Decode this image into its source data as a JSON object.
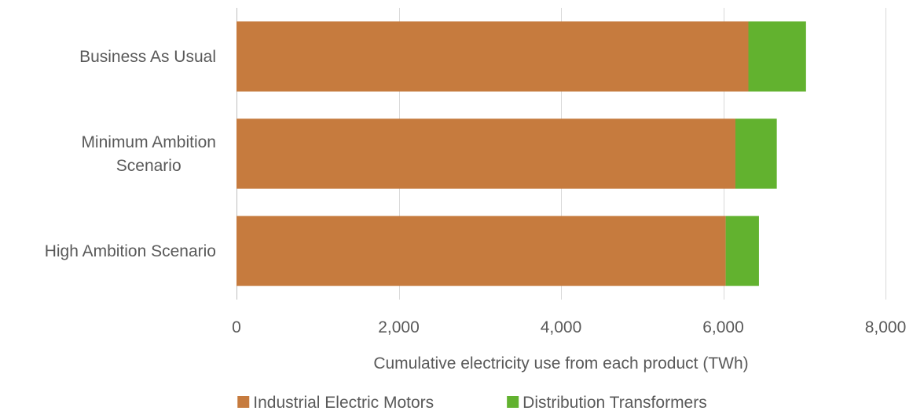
{
  "chart_data": {
    "type": "bar",
    "orientation": "horizontal",
    "stacked": true,
    "categories": [
      [
        "Business As Usual"
      ],
      [
        "Minimum Ambition",
        "Scenario"
      ],
      [
        "High Ambition Scenario"
      ]
    ],
    "series": [
      {
        "name": "Industrial Electric Motors",
        "color": "#C67B3E",
        "values": [
          6310,
          6150,
          6030
        ]
      },
      {
        "name": "Distribution Transformers",
        "color": "#62B22F",
        "values": [
          710,
          510,
          410
        ]
      }
    ],
    "xlabel": "Cumulative electricity use from each product (TWh)",
    "ylabel": "",
    "xlim": [
      0,
      8000
    ],
    "xticks": [
      0,
      2000,
      4000,
      6000,
      8000
    ],
    "xtick_labels": [
      "0",
      "2,000",
      "4,000",
      "6,000",
      "8,000"
    ],
    "grid": "vertical",
    "gridline_color": "#D9D9D9",
    "legend_position": "bottom"
  }
}
